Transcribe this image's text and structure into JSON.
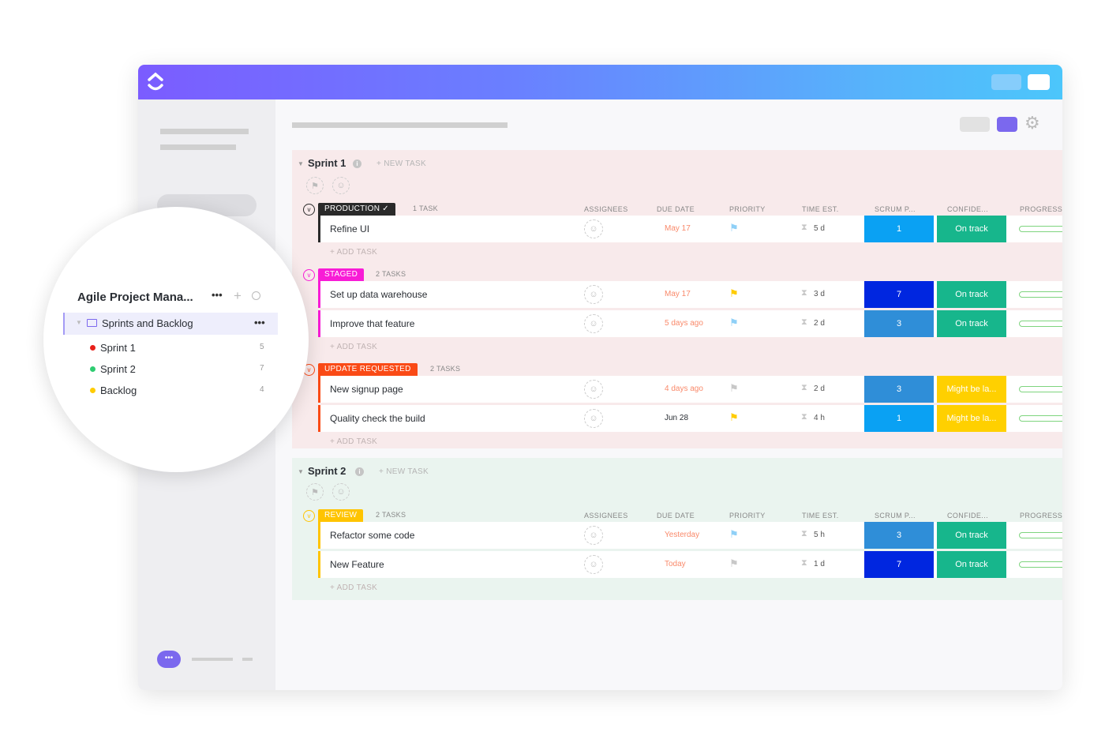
{
  "sidebar": {
    "workspace_title": "Agile Project Mana...",
    "folder": "Sprints and Backlog",
    "lists": [
      {
        "name": "Sprint 1",
        "count": "5",
        "color": "#e8201a"
      },
      {
        "name": "Sprint 2",
        "count": "7",
        "color": "#2ecc71"
      },
      {
        "name": "Backlog",
        "count": "4",
        "color": "#ffcc00"
      }
    ]
  },
  "columns": [
    "ASSIGNEES",
    "DUE DATE",
    "PRIORITY",
    "TIME EST.",
    "SCRUM P...",
    "CONFIDE...",
    "PROGRESS"
  ],
  "new_task_label": "+ NEW TASK",
  "add_task_label": "+ ADD TASK",
  "sprints": [
    {
      "title": "Sprint 1",
      "groups": [
        {
          "status": "PRODUCTION",
          "color": "#2a2a2a",
          "count": "1 TASK",
          "check": true,
          "tasks": [
            {
              "name": "Refine UI",
              "due": "May 17",
              "due_color": "#f98a6b",
              "flag": "#8fd0f7",
              "time": "5 d",
              "scrum": "1",
              "scrum_color": "#0aa1f3",
              "conf": "On track",
              "conf_color": "#17b68c"
            }
          ]
        },
        {
          "status": "STAGED",
          "color": "#f81cd6",
          "count": "2 TASKS",
          "tasks": [
            {
              "name": "Set up data warehouse",
              "due": "May 17",
              "due_color": "#f98a6b",
              "flag": "#ffcc00",
              "time": "3 d",
              "scrum": "7",
              "scrum_color": "#0026e0",
              "conf": "On track",
              "conf_color": "#17b68c"
            },
            {
              "name": "Improve that feature",
              "due": "5 days ago",
              "due_color": "#f98a6b",
              "flag": "#8fd0f7",
              "time": "2 d",
              "scrum": "3",
              "scrum_color": "#2f8ed8",
              "conf": "On track",
              "conf_color": "#17b68c"
            }
          ]
        },
        {
          "status": "UPDATE REQUESTED",
          "color": "#fa4a16",
          "count": "2 TASKS",
          "tasks": [
            {
              "name": "New signup page",
              "due": "4 days ago",
              "due_color": "#f98a6b",
              "flag": "#c8c8c8",
              "time": "2 d",
              "scrum": "3",
              "scrum_color": "#2f8ed8",
              "conf": "Might be la...",
              "conf_color": "#ffd000"
            },
            {
              "name": "Quality check the build",
              "due": "Jun 28",
              "due_color": "#2a2e34",
              "flag": "#ffcc00",
              "time": "4 h",
              "scrum": "1",
              "scrum_color": "#0aa1f3",
              "conf": "Might be la...",
              "conf_color": "#ffd000"
            }
          ]
        }
      ]
    },
    {
      "title": "Sprint 2",
      "groups": [
        {
          "status": "REVIEW",
          "color": "#ffc400",
          "count": "2 TASKS",
          "tasks": [
            {
              "name": "Refactor some code",
              "due": "Yesterday",
              "due_color": "#f98a6b",
              "flag": "#8fd0f7",
              "time": "5 h",
              "scrum": "3",
              "scrum_color": "#2f8ed8",
              "conf": "On track",
              "conf_color": "#17b68c"
            },
            {
              "name": "New Feature",
              "due": "Today",
              "due_color": "#f98a6b",
              "flag": "#c8c8c8",
              "time": "1 d",
              "scrum": "7",
              "scrum_color": "#0026e0",
              "conf": "On track",
              "conf_color": "#17b68c"
            }
          ]
        }
      ]
    }
  ]
}
